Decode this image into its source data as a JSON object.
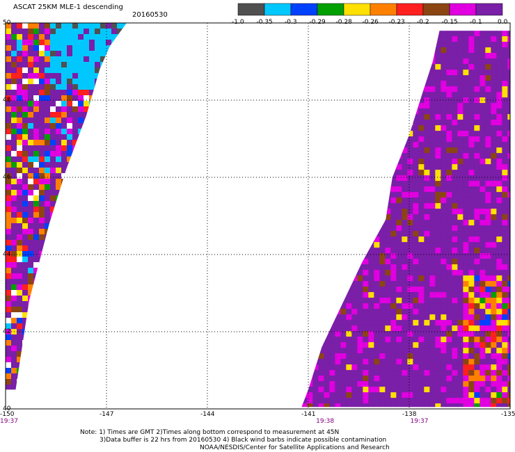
{
  "chart_data": {
    "type": "heatmap",
    "title": "ASCAT 25KM MLE-1 descending",
    "date": "20160530",
    "colorbar": {
      "colors": [
        "#505050",
        "#00c8ff",
        "#0040ff",
        "#00a000",
        "#ffe000",
        "#ff8000",
        "#ff2020",
        "#8b4513",
        "#e000e0",
        "#7a1fa8"
      ],
      "tick_labels": [
        "-1.0",
        "-0.35",
        "-0.3",
        "-0.29",
        "-0.28",
        "-0.26",
        "-0.23",
        "-0.2",
        "-0.15",
        "-0.1",
        "0.0"
      ]
    },
    "x_ticks": [
      {
        "value": -150,
        "label": "-150"
      },
      {
        "value": -147,
        "label": "-147"
      },
      {
        "value": -144,
        "label": "-144"
      },
      {
        "value": -141,
        "label": "-141"
      },
      {
        "value": -138,
        "label": "-138"
      },
      {
        "value": -135,
        "label": "-135"
      }
    ],
    "y_ticks": [
      {
        "value": 50,
        "label": "50"
      },
      {
        "value": 48,
        "label": "48"
      },
      {
        "value": 46,
        "label": "46"
      },
      {
        "value": 44,
        "label": "44"
      },
      {
        "value": 42,
        "label": "42"
      },
      {
        "value": 40,
        "label": "40"
      }
    ],
    "xlim": [
      -150,
      -135
    ],
    "ylim": [
      40,
      50
    ],
    "grid": true,
    "times": [
      {
        "lon": -150,
        "label": "19:37"
      },
      {
        "lon": -140.5,
        "label": "19:38"
      },
      {
        "lon": -137.7,
        "label": "19:37"
      }
    ],
    "swaths": [
      {
        "name": "west",
        "polygon": [
          [
            -150,
            50
          ],
          [
            -146.4,
            50
          ],
          [
            -146.9,
            49.4
          ],
          [
            -147.2,
            48.8
          ],
          [
            -147.6,
            47.6
          ],
          [
            -148.2,
            46.2
          ],
          [
            -148.7,
            44.8
          ],
          [
            -149.3,
            42.8
          ],
          [
            -149.7,
            40.5
          ],
          [
            -150,
            40.5
          ]
        ]
      },
      {
        "name": "east",
        "polygon": [
          [
            -137.1,
            49.8
          ],
          [
            -135,
            49.8
          ],
          [
            -135,
            40.05
          ],
          [
            -141.2,
            40.05
          ],
          [
            -141,
            40.5
          ],
          [
            -140.6,
            41.6
          ],
          [
            -140,
            42.7
          ],
          [
            -139.4,
            43.8
          ],
          [
            -138.7,
            44.9
          ],
          [
            -138.5,
            46
          ],
          [
            -138,
            47.1
          ],
          [
            -137.6,
            48.2
          ],
          [
            -137.3,
            49
          ]
        ]
      }
    ]
  },
  "footer": {
    "line1": "Note: 1) Times are GMT 2)Times along bottom correspond to measurement at 45N",
    "line2": "3)Data buffer is 22 hrs from 20160530 4) Black wind barbs indicate possible contamination",
    "line3": "NOAA/NESDIS/Center for Satellite Applications and Research"
  }
}
